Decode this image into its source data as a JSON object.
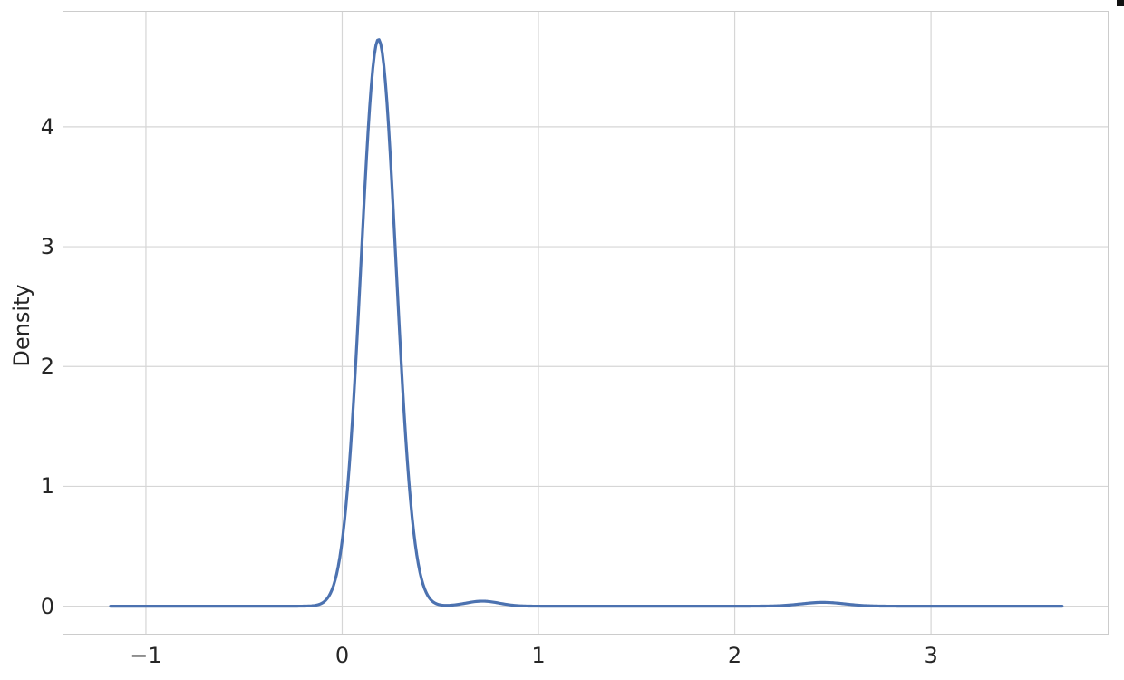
{
  "chart_data": {
    "type": "line",
    "subtype": "kde-density-curve",
    "title": "",
    "xlabel": "",
    "ylabel": "Density",
    "x_ticks": [
      -1,
      0,
      1,
      2,
      3
    ],
    "y_ticks": [
      0,
      1,
      2,
      3,
      4
    ],
    "xlim": [
      -1.42,
      3.9
    ],
    "ylim": [
      -0.23,
      4.96
    ],
    "grid": true,
    "legend": null,
    "line_color": "#4c72b0",
    "line_width": 3.2,
    "curve": {
      "x_start": -1.18,
      "x_end": 3.67,
      "gaussian_components": [
        {
          "amplitude": 4.73,
          "mean": 0.185,
          "sd": 0.089
        },
        {
          "amplitude": 0.042,
          "mean": 0.715,
          "sd": 0.085
        },
        {
          "amplitude": 0.032,
          "mean": 2.45,
          "sd": 0.11
        }
      ],
      "keypoints": [
        {
          "x": -1.18,
          "y": 0.0
        },
        {
          "x": -0.2,
          "y": 0.0
        },
        {
          "x": 0.0,
          "y": 0.55
        },
        {
          "x": 0.185,
          "y": 4.73
        },
        {
          "x": 0.4,
          "y": 0.55
        },
        {
          "x": 0.55,
          "y": 0.02
        },
        {
          "x": 0.715,
          "y": 0.04
        },
        {
          "x": 1.0,
          "y": 0.0
        },
        {
          "x": 2.45,
          "y": 0.03
        },
        {
          "x": 3.67,
          "y": 0.0
        }
      ]
    },
    "colors": {
      "grid": "#d6d6d6",
      "spine": "#cccccc",
      "text": "#262626",
      "background": "#ffffff"
    }
  },
  "artifacts": {
    "corner_mark_color": "#111111"
  }
}
